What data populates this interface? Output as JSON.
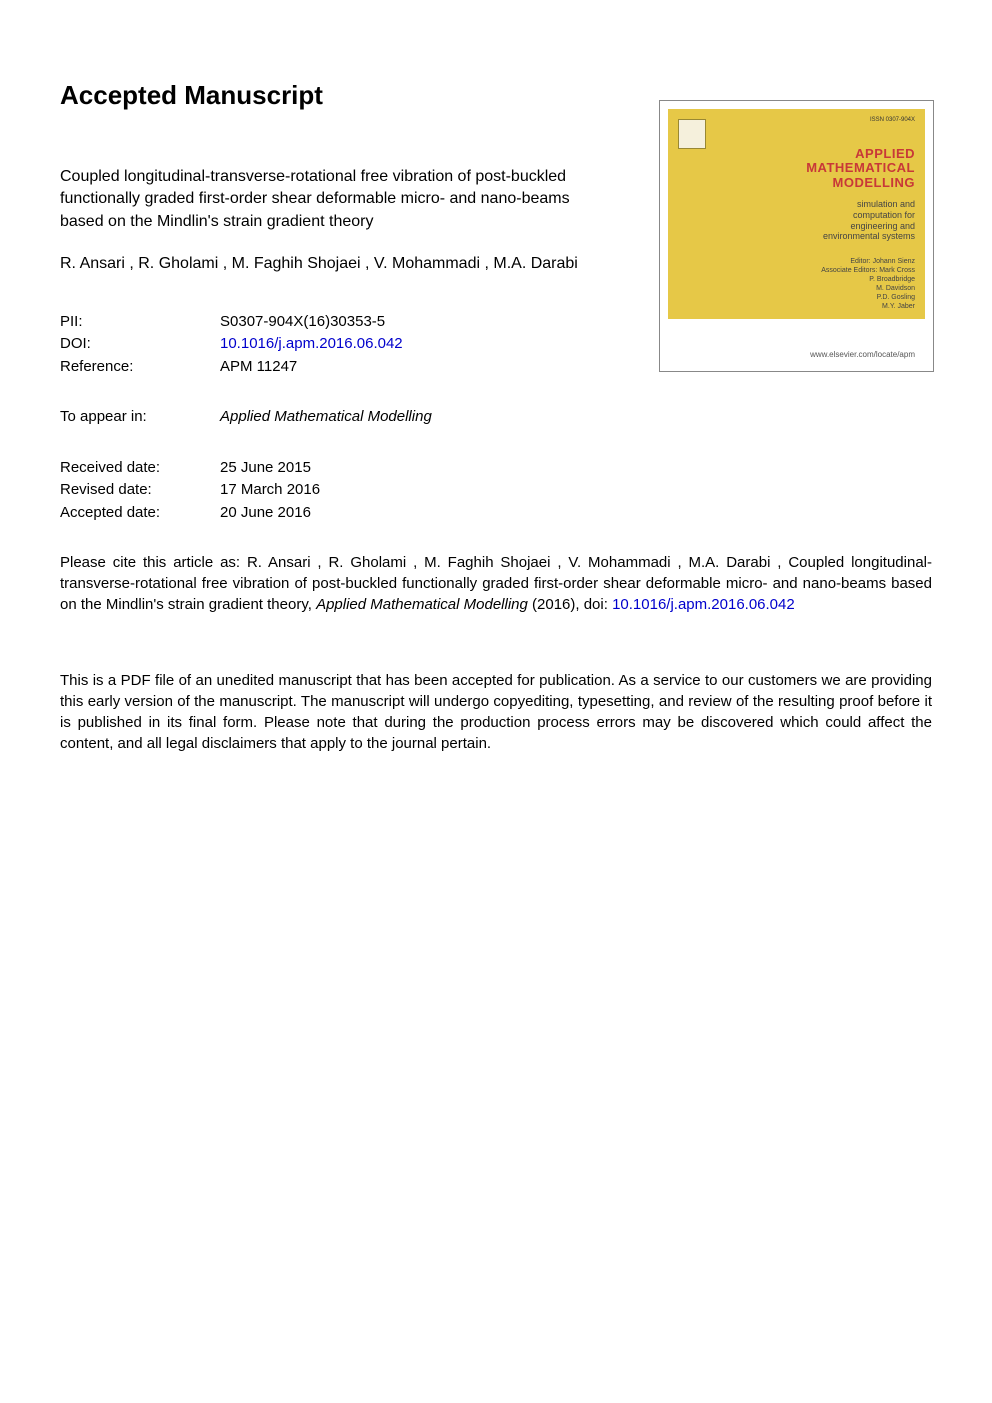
{
  "heading": "Accepted Manuscript",
  "title": "Coupled longitudinal-transverse-rotational free vibration of post-buckled functionally graded first-order shear deformable micro- and nano-beams based on the Mindlin's strain gradient theory",
  "authors": " R. Ansari ,  R. Gholami ,  M. Faghih Shojaei ,  V. Mohammadi ,  M.A. Darabi",
  "meta": {
    "pii": {
      "label": "PII:",
      "value": "S0307-904X(16)30353-5"
    },
    "doi": {
      "label": "DOI:",
      "value": "10.1016/j.apm.2016.06.042"
    },
    "reference": {
      "label": "Reference:",
      "value": "APM 11247"
    },
    "appear": {
      "label": "To appear in:",
      "value": "Applied Mathematical Modelling"
    },
    "received": {
      "label": "Received date:",
      "value": "25 June 2015"
    },
    "revised": {
      "label": "Revised date:",
      "value": "17 March 2016"
    },
    "accepted": {
      "label": "Accepted date:",
      "value": "20 June 2016"
    }
  },
  "cite_prefix": "Please cite this article as:  R. Ansari ,  R. Gholami ,  M. Faghih Shojaei ,  V. Mohammadi ,  M.A. Darabi ,  Coupled longitudinal-transverse-rotational free vibration of post-buckled functionally graded first-order shear deformable micro- and nano-beams based on the Mindlin's strain gradient theory, ",
  "cite_journal": "Applied Mathematical Modelling",
  "cite_year": " (2016), doi: ",
  "cite_doi": "10.1016/j.apm.2016.06.042",
  "disclaimer": "This is a PDF file of an unedited manuscript that has been accepted for publication. As a service to our customers we are providing this early version of the manuscript. The manuscript will undergo copyediting, typesetting, and review of the resulting proof before it is published in its final form. Please note that during the production process errors may be discovered which could affect the content, and all legal disclaimers that apply to the journal pertain.",
  "cover": {
    "issn": "ISSN 0307-904X",
    "title_line1": "APPLIED",
    "title_line2": "MATHEMATICAL",
    "title_line3": "MODELLING",
    "subtitle": "simulation and\ncomputation for\nengineering and\nenvironmental systems",
    "editors": "Editor: Johann Sienz\nAssociate Editors: Mark Cross\nP. Broadbridge\nM. Davidson\nP.D. Gosling\nM.Y. Jaber",
    "url": "www.elsevier.com/locate/apm"
  },
  "colors": {
    "link": "#0000cc",
    "cover_bg": "#e6c847",
    "cover_title": "#c83838"
  }
}
